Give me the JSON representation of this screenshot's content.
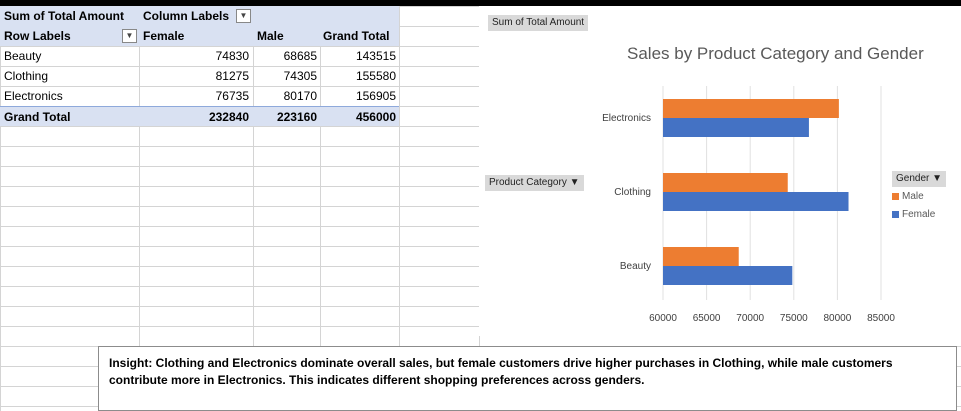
{
  "pivot": {
    "header1": {
      "sum_label": "Sum of Total Amount",
      "column_labels": "Column Labels"
    },
    "header2": {
      "row_labels": "Row Labels",
      "female": "Female",
      "male": "Male",
      "grand_total": "Grand Total"
    },
    "rows": [
      {
        "label": "Beauty",
        "female": "74830",
        "male": "68685",
        "total": "143515"
      },
      {
        "label": "Clothing",
        "female": "81275",
        "male": "74305",
        "total": "155580"
      },
      {
        "label": "Electronics",
        "female": "76735",
        "male": "80170",
        "total": "156905"
      }
    ],
    "grand_total": {
      "label": "Grand Total",
      "female": "232840",
      "male": "223160",
      "total": "456000"
    },
    "dropdown_glyph": "▼"
  },
  "chart": {
    "field_sum_label": "Sum of Total Amount",
    "field_category_label": "Product Category ▼",
    "field_gender_label": "Gender ▼",
    "title": "Sales by Product Category and Gender",
    "colors": {
      "male": "#ed7d31",
      "female": "#4472c4"
    }
  },
  "chart_data": {
    "type": "bar",
    "orientation": "horizontal",
    "title": "Sales by Product Category and Gender",
    "categories": [
      "Beauty",
      "Clothing",
      "Electronics"
    ],
    "series": [
      {
        "name": "Male",
        "values": [
          68685,
          74305,
          80170
        ]
      },
      {
        "name": "Female",
        "values": [
          74830,
          81275,
          76735
        ]
      }
    ],
    "xlim": [
      60000,
      85000
    ],
    "xticks": [
      "60000",
      "65000",
      "70000",
      "75000",
      "80000",
      "85000"
    ],
    "legend_title": "Gender",
    "legend_position": "right",
    "grid": true
  },
  "insight": {
    "text": "Insight: Clothing and Electronics dominate overall sales, but female customers drive higher purchases in Clothing, while male customers contribute more in Electronics. This indicates different shopping preferences across genders."
  }
}
